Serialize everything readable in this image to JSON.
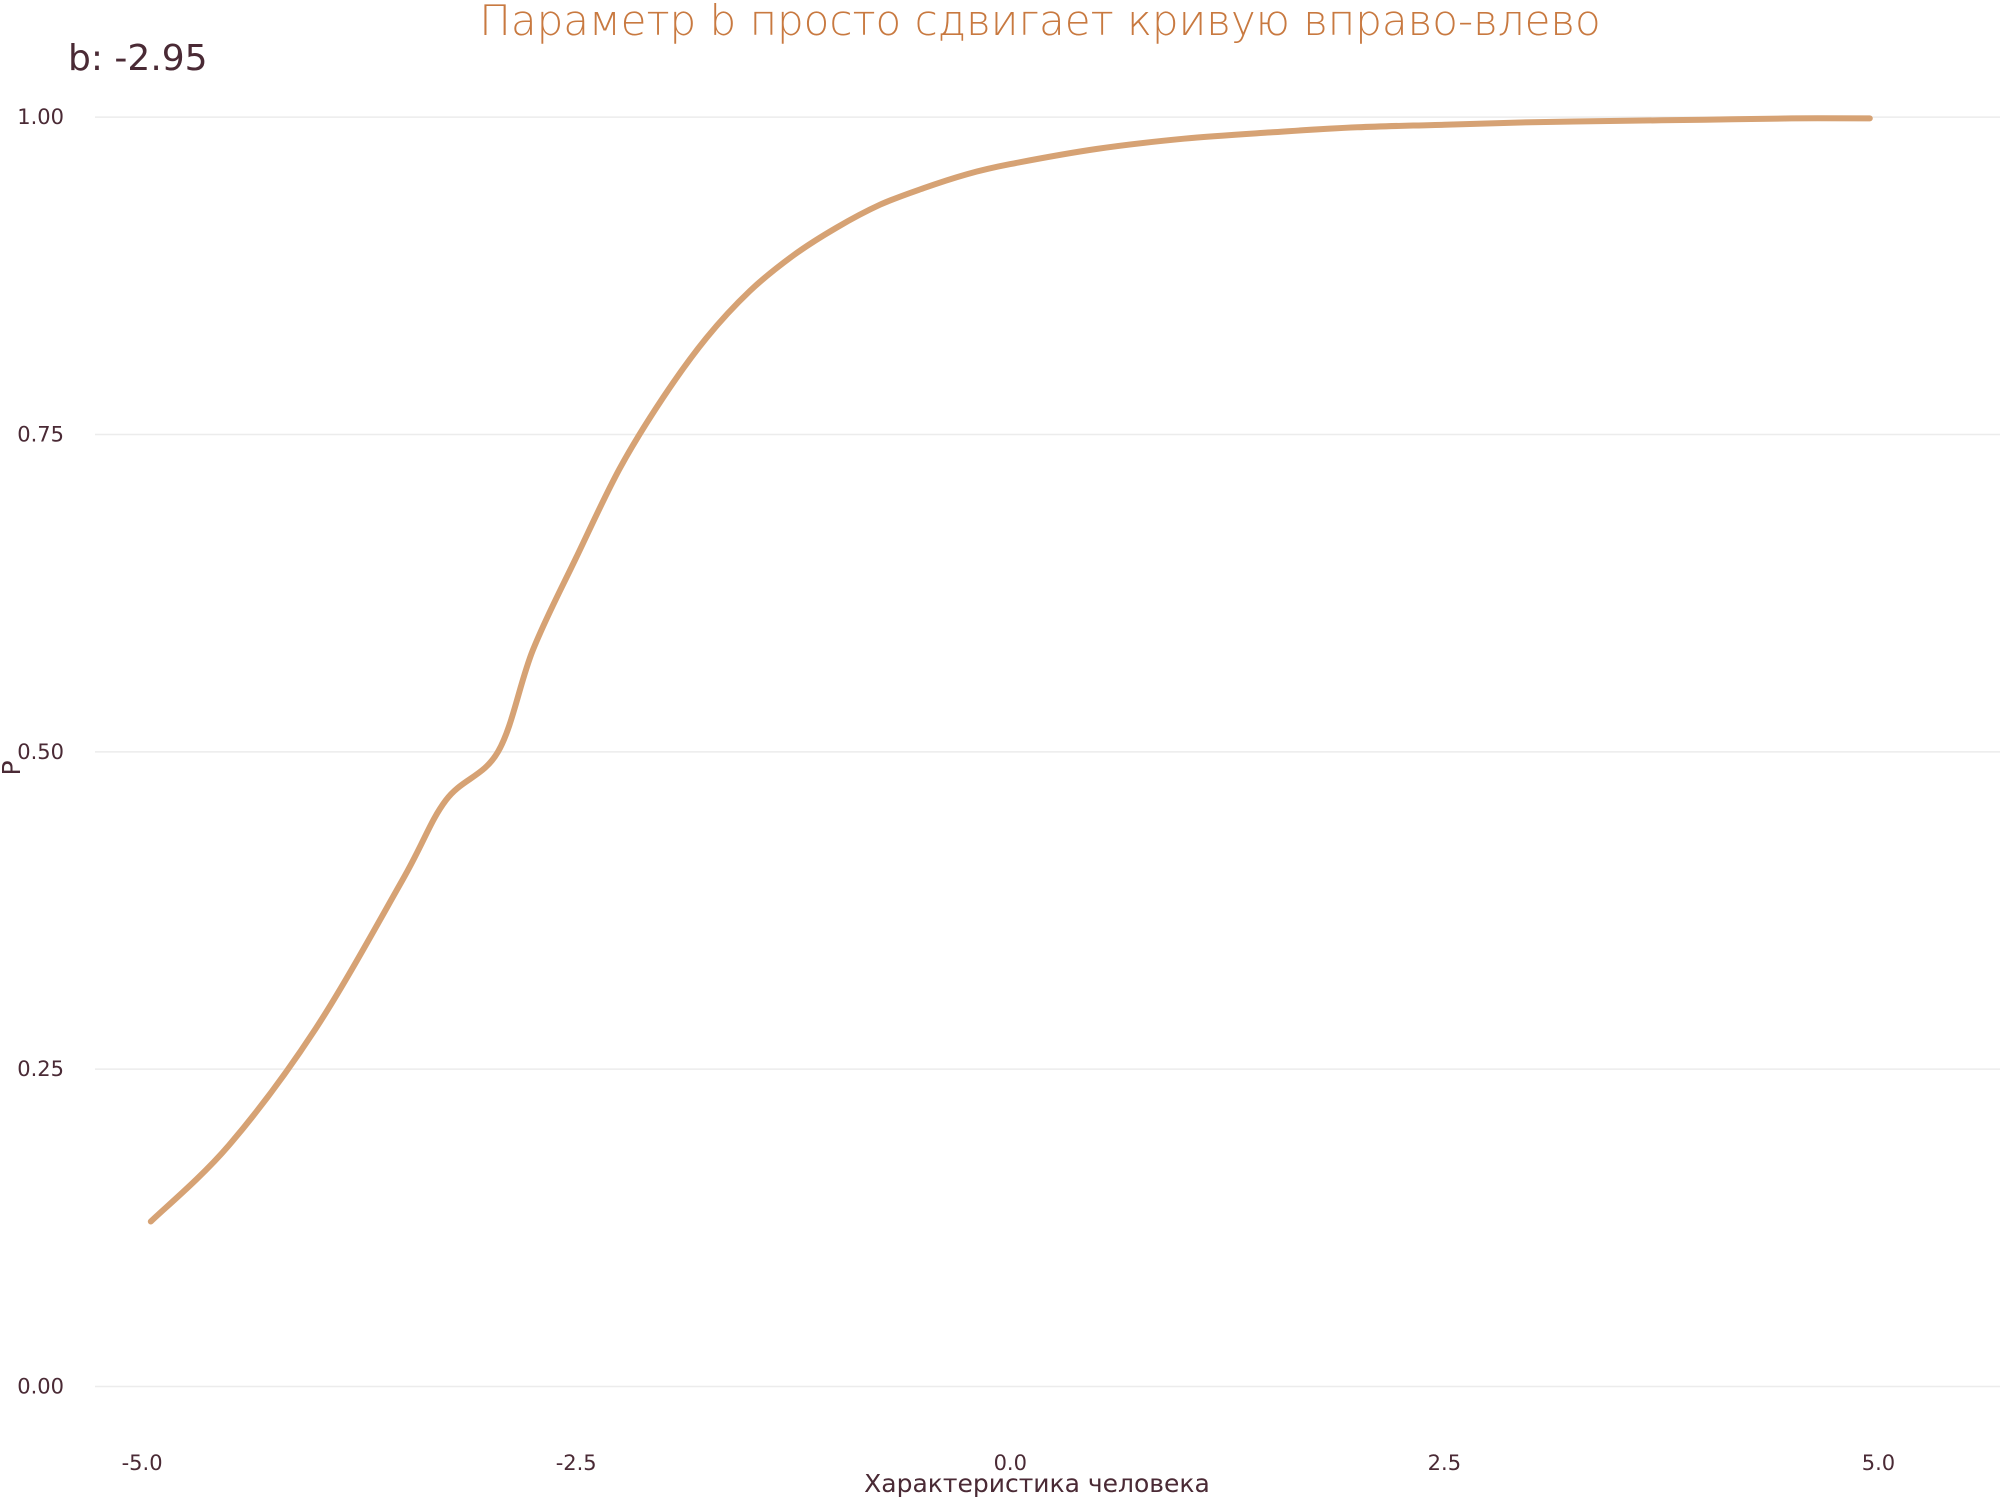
{
  "chart_data": {
    "type": "line",
    "title": "Параметр b просто сдвигает кривую вправо-влево",
    "annotation": "b: -2.95",
    "xlabel": "Характеристика человека",
    "ylabel": "P",
    "xlim": [
      -5.3,
      5.7
    ],
    "ylim": [
      -0.05,
      1.045
    ],
    "x_ticks": [
      -5,
      -2.5,
      0,
      2.5,
      5
    ],
    "x_tick_labels": [
      "-5.0",
      "-2.5",
      "0.0",
      "2.5",
      "5.0"
    ],
    "y_ticks": [
      0,
      0.25,
      0.5,
      0.75,
      1
    ],
    "y_tick_labels": [
      "0.00",
      "0.25",
      "0.50",
      "0.75",
      "1.00"
    ],
    "grid": true,
    "series": [
      {
        "color": "#d6a274",
        "x": [
          -4.95,
          -4.5,
          -4.0,
          -3.5,
          -3.25,
          -2.95,
          -2.75,
          -2.5,
          -2.25,
          -2.0,
          -1.75,
          -1.5,
          -1.25,
          -1.0,
          -0.75,
          -0.5,
          -0.25,
          0.0,
          0.5,
          1.0,
          1.5,
          2.0,
          2.5,
          3.0,
          3.5,
          4.0,
          4.5,
          4.95
        ],
        "y": [
          0.13,
          0.19,
          0.282,
          0.399,
          0.462,
          0.5,
          0.58,
          0.653,
          0.723,
          0.779,
          0.826,
          0.863,
          0.891,
          0.913,
          0.931,
          0.944,
          0.955,
          0.963,
          0.975,
          0.983,
          0.988,
          0.992,
          0.994,
          0.996,
          0.997,
          0.998,
          0.999,
          0.999
        ]
      }
    ]
  }
}
